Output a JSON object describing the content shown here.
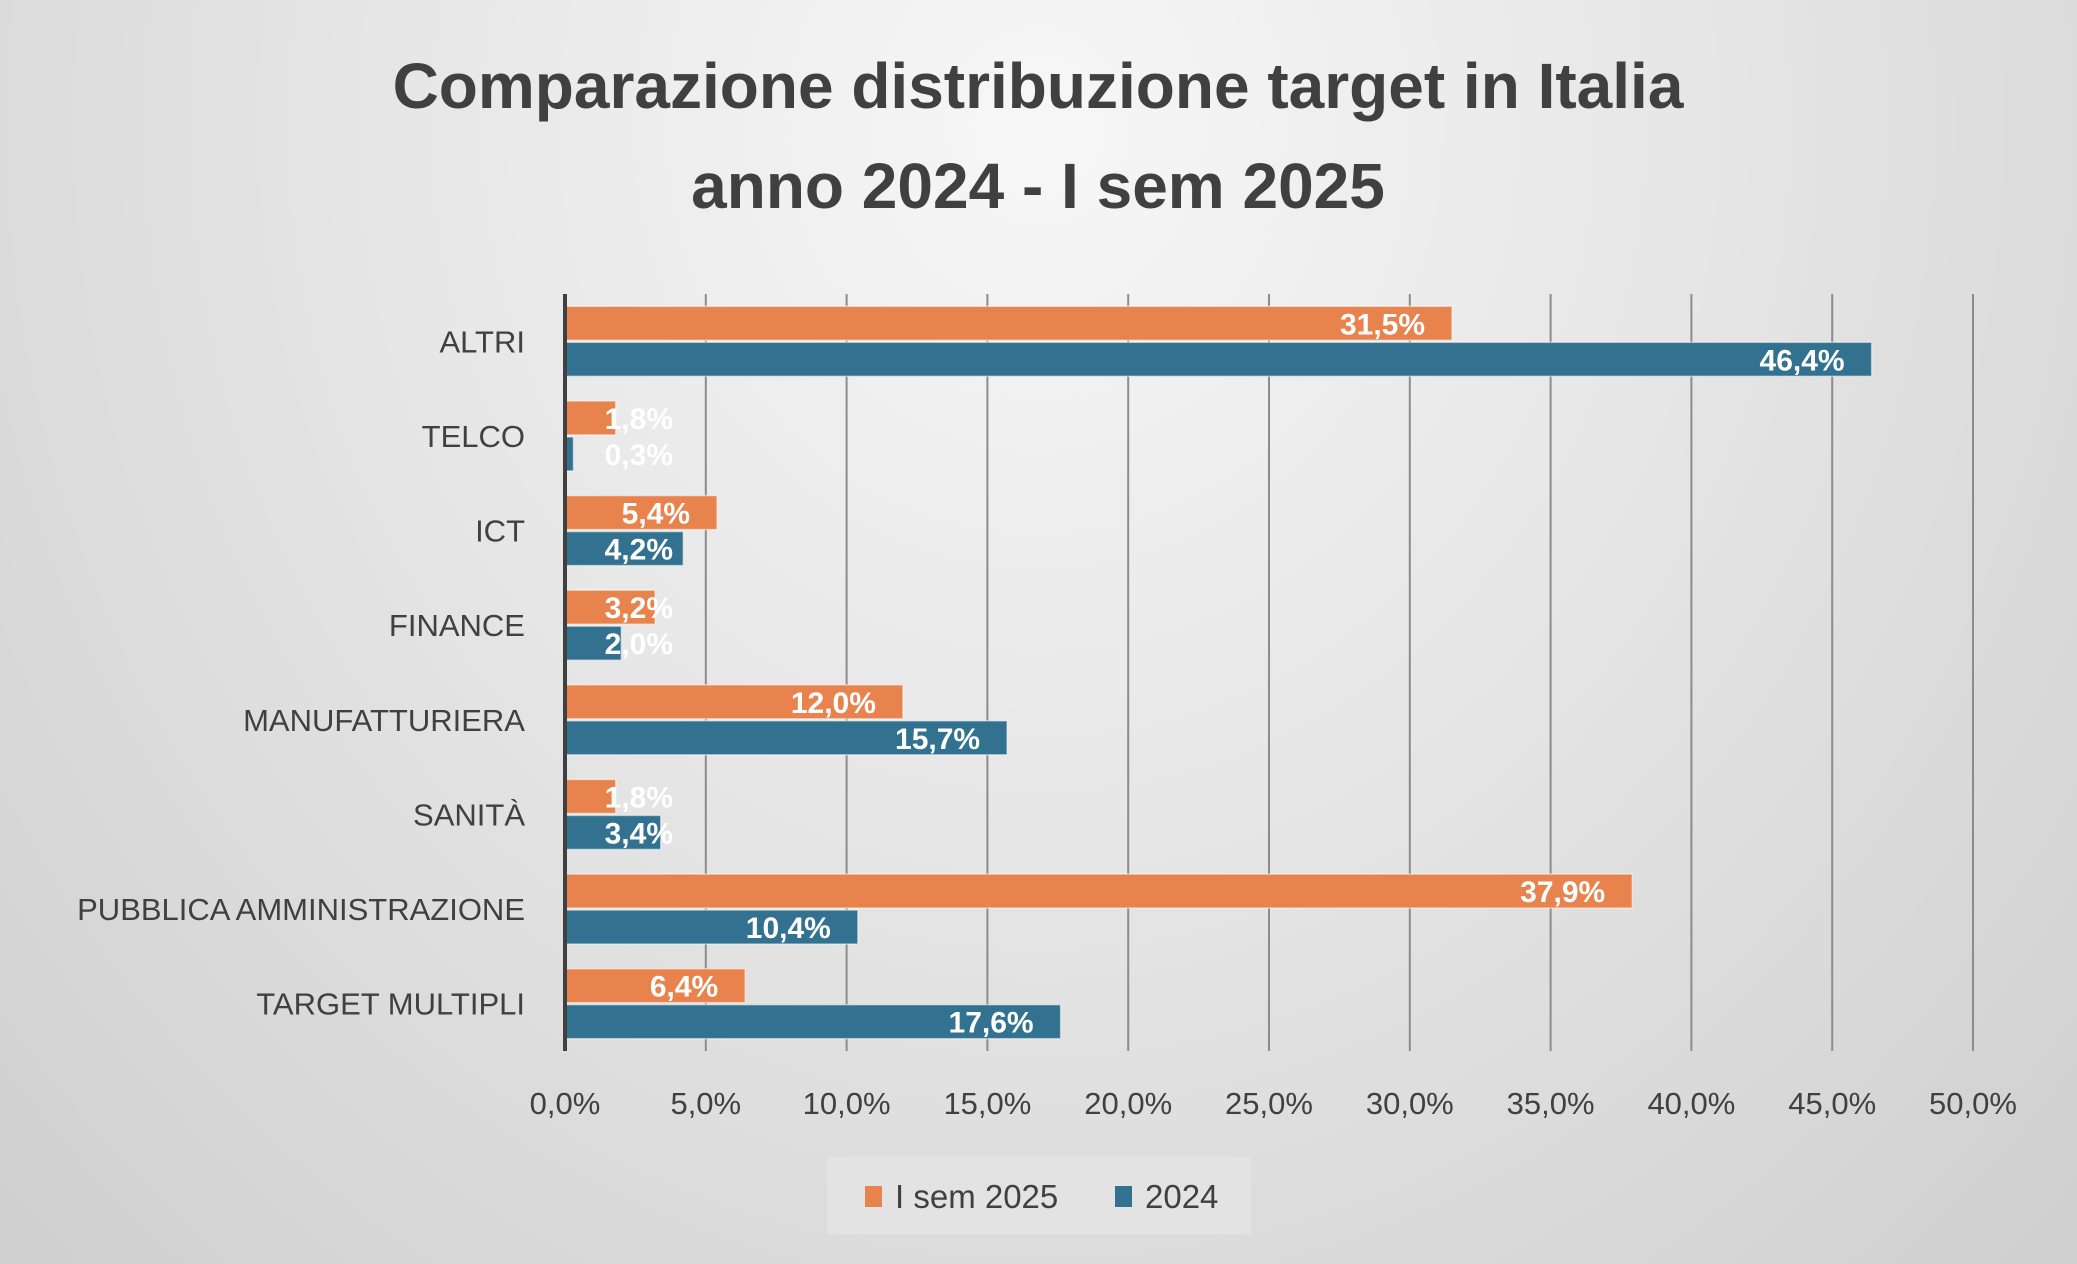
{
  "chart_data": {
    "type": "bar",
    "orientation": "horizontal",
    "title": "Comparazione distribuzione target in Italia anno 2024 - I sem 2025",
    "title_lines": [
      "Comparazione distribuzione target in Italia",
      "anno 2024 - I sem 2025"
    ],
    "categories": [
      "ALTRI",
      "TELCO",
      "ICT",
      "FINANCE",
      "MANUFATTURIERA",
      "SANITÀ",
      "PUBBLICA AMMINISTRAZIONE",
      "TARGET MULTIPLI"
    ],
    "series": [
      {
        "name": "I sem 2025",
        "color": "#E8834E",
        "values": [
          31.5,
          1.8,
          5.4,
          3.2,
          12.0,
          1.8,
          37.9,
          6.4
        ],
        "labels": [
          "31,5%",
          "1,8%",
          "5,4%",
          "3,2%",
          "12,0%",
          "1,8%",
          "37,9%",
          "6,4%"
        ]
      },
      {
        "name": "2024",
        "color": "#32718F",
        "values": [
          46.4,
          0.3,
          4.2,
          2.0,
          15.7,
          3.4,
          10.4,
          17.6
        ],
        "labels": [
          "46,4%",
          "0,3%",
          "4,2%",
          "2,0%",
          "15,7%",
          "3,4%",
          "10,4%",
          "17,6%"
        ]
      }
    ],
    "xlim": [
      0,
      50
    ],
    "x_ticks": [
      "0,0%",
      "5,0%",
      "10,0%",
      "15,0%",
      "20,0%",
      "25,0%",
      "30,0%",
      "35,0%",
      "40,0%",
      "45,0%",
      "50,0%"
    ],
    "grid": "vertical",
    "legend": "bottom",
    "xlabel": "",
    "ylabel": ""
  }
}
